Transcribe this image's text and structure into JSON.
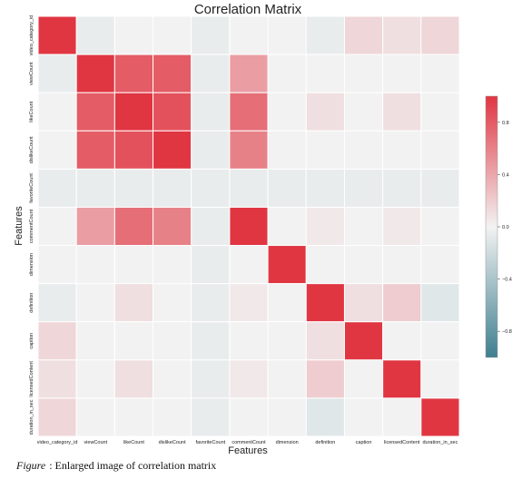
{
  "chart_data": {
    "type": "heatmap",
    "title": "Correlation Matrix",
    "xlabel": "Features",
    "ylabel": "Features",
    "features": [
      "video_category_id",
      "viewCount",
      "likeCount",
      "dislikeCount",
      "favoriteCount",
      "commentCount",
      "dimension",
      "definition",
      "caption",
      "licensedContent",
      "duration_in_sec"
    ],
    "values": [
      [
        1.0,
        -0.05,
        0.0,
        0.0,
        -0.05,
        0.0,
        0.0,
        -0.05,
        0.15,
        0.1,
        0.15
      ],
      [
        -0.05,
        1.0,
        0.8,
        0.8,
        -0.05,
        0.45,
        0.0,
        0.0,
        0.0,
        0.0,
        0.0
      ],
      [
        0.0,
        0.8,
        1.0,
        0.85,
        -0.05,
        0.7,
        0.0,
        0.1,
        0.0,
        0.1,
        0.0
      ],
      [
        0.0,
        0.8,
        0.85,
        1.0,
        -0.05,
        0.6,
        0.0,
        0.0,
        0.0,
        0.0,
        0.0
      ],
      [
        -0.05,
        -0.05,
        -0.05,
        -0.05,
        -0.05,
        -0.05,
        -0.05,
        -0.05,
        -0.05,
        -0.05,
        -0.05
      ],
      [
        0.0,
        0.45,
        0.7,
        0.6,
        -0.05,
        1.0,
        0.0,
        0.05,
        0.0,
        0.05,
        0.0
      ],
      [
        0.0,
        0.0,
        0.0,
        0.0,
        -0.05,
        0.0,
        1.0,
        0.0,
        0.0,
        0.0,
        0.0
      ],
      [
        -0.05,
        0.0,
        0.1,
        0.0,
        -0.05,
        0.05,
        0.0,
        1.0,
        0.1,
        0.2,
        -0.1
      ],
      [
        0.15,
        0.0,
        0.0,
        0.0,
        -0.05,
        0.0,
        0.0,
        0.1,
        1.0,
        0.0,
        0.0
      ],
      [
        0.1,
        0.0,
        0.1,
        0.0,
        -0.05,
        0.05,
        0.0,
        0.2,
        0.0,
        1.0,
        0.0
      ],
      [
        0.15,
        0.0,
        0.0,
        0.0,
        -0.05,
        0.0,
        0.0,
        -0.1,
        0.0,
        0.0,
        1.0
      ]
    ],
    "colorbar": {
      "range": [
        -1,
        1
      ],
      "ticks": [
        0.8,
        0.4,
        0.0,
        -0.4,
        -0.8
      ],
      "tick_labels": [
        "0.8",
        "0.4",
        "0.0",
        "−0.4",
        "−0.8"
      ],
      "low_color": "#3f7f8f",
      "mid_color": "#f2f2f2",
      "high_color": "#e03642"
    },
    "grid": true
  },
  "caption": {
    "figure_label": "Figure",
    "text": ": Enlarged image of correlation matrix"
  }
}
